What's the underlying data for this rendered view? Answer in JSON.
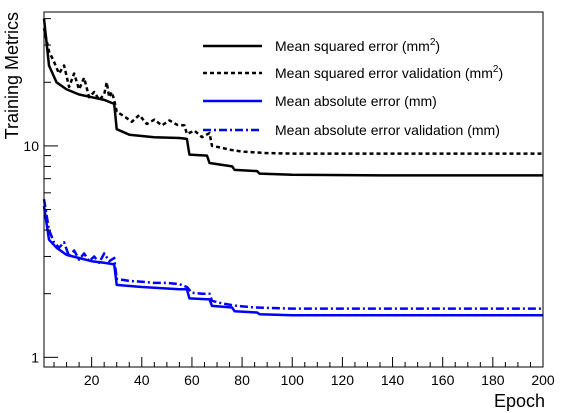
{
  "chart_data": {
    "type": "line",
    "xlabel": "Epoch",
    "ylabel": "Training Metrics",
    "x_scale": "linear",
    "y_scale": "log",
    "xlim": [
      1,
      200
    ],
    "ylim": [
      0.9,
      43
    ],
    "x_ticks": [
      20,
      40,
      60,
      80,
      100,
      120,
      140,
      160,
      180,
      200
    ],
    "x_tick_labels": [
      "20",
      "40",
      "60",
      "80",
      "100",
      "120",
      "140",
      "160",
      "180",
      "200"
    ],
    "y_ticks": [
      1,
      10
    ],
    "y_tick_labels": [
      "1",
      "10"
    ],
    "grid": false,
    "legend_position": "top-right",
    "series": [
      {
        "name": "Mean squared error (mm",
        "name_sup": "2",
        "name_suffix": ")",
        "color": "#000000",
        "style": "solid",
        "points": [
          [
            1,
            40
          ],
          [
            3,
            24
          ],
          [
            6,
            20
          ],
          [
            10,
            18.5
          ],
          [
            15,
            17.5
          ],
          [
            20,
            17
          ],
          [
            25,
            16.5
          ],
          [
            29,
            15.8
          ],
          [
            30,
            12
          ],
          [
            35,
            11.3
          ],
          [
            45,
            11
          ],
          [
            55,
            10.9
          ],
          [
            58,
            10.8
          ],
          [
            59,
            9.1
          ],
          [
            66,
            9.0
          ],
          [
            67,
            8.3
          ],
          [
            76,
            8.0
          ],
          [
            77,
            7.7
          ],
          [
            86,
            7.6
          ],
          [
            87,
            7.4
          ],
          [
            100,
            7.3
          ],
          [
            140,
            7.25
          ],
          [
            200,
            7.25
          ]
        ]
      },
      {
        "name": "Mean squared error validation (mm",
        "name_sup": "2",
        "name_suffix": ")",
        "color": "#000000",
        "style": "dotted",
        "points": [
          [
            1,
            36
          ],
          [
            3,
            28
          ],
          [
            5,
            25
          ],
          [
            7,
            22
          ],
          [
            9,
            24
          ],
          [
            11,
            19
          ],
          [
            13,
            22
          ],
          [
            15,
            18.5
          ],
          [
            17,
            21
          ],
          [
            19,
            17
          ],
          [
            21,
            18
          ],
          [
            23,
            16.5
          ],
          [
            25,
            17.5
          ],
          [
            26,
            20
          ],
          [
            27,
            17
          ],
          [
            28,
            18
          ],
          [
            29,
            16.5
          ],
          [
            30,
            14.5
          ],
          [
            33,
            13.8
          ],
          [
            36,
            13
          ],
          [
            39,
            14
          ],
          [
            42,
            12.7
          ],
          [
            45,
            13.3
          ],
          [
            48,
            12.5
          ],
          [
            51,
            13.2
          ],
          [
            54,
            12.6
          ],
          [
            57,
            12.5
          ],
          [
            58,
            11.4
          ],
          [
            61,
            11.8
          ],
          [
            64,
            11
          ],
          [
            67,
            11.5
          ],
          [
            68,
            10
          ],
          [
            72,
            9.8
          ],
          [
            75,
            9.6
          ],
          [
            80,
            9.4
          ],
          [
            90,
            9.25
          ],
          [
            100,
            9.2
          ],
          [
            200,
            9.2
          ]
        ]
      },
      {
        "name": "Mean absolute error (mm)",
        "color": "#0000ff",
        "style": "solid",
        "points": [
          [
            1,
            5.2
          ],
          [
            3,
            3.6
          ],
          [
            6,
            3.3
          ],
          [
            10,
            3.05
          ],
          [
            15,
            2.95
          ],
          [
            20,
            2.85
          ],
          [
            25,
            2.8
          ],
          [
            29,
            2.75
          ],
          [
            30,
            2.2
          ],
          [
            40,
            2.15
          ],
          [
            55,
            2.1
          ],
          [
            58,
            2.1
          ],
          [
            59,
            1.9
          ],
          [
            67,
            1.88
          ],
          [
            68,
            1.75
          ],
          [
            76,
            1.72
          ],
          [
            77,
            1.65
          ],
          [
            86,
            1.63
          ],
          [
            87,
            1.6
          ],
          [
            100,
            1.58
          ],
          [
            200,
            1.58
          ]
        ]
      },
      {
        "name": "Mean absolute error validation (mm)",
        "color": "#0000ff",
        "style": "dashdot",
        "points": [
          [
            1,
            5.6
          ],
          [
            3,
            4
          ],
          [
            5,
            3.5
          ],
          [
            7,
            3.3
          ],
          [
            9,
            3.5
          ],
          [
            11,
            3.0
          ],
          [
            13,
            3.2
          ],
          [
            15,
            2.9
          ],
          [
            17,
            3.1
          ],
          [
            19,
            2.85
          ],
          [
            21,
            3.0
          ],
          [
            23,
            2.8
          ],
          [
            25,
            3.1
          ],
          [
            27,
            2.85
          ],
          [
            29,
            2.95
          ],
          [
            30,
            2.35
          ],
          [
            35,
            2.3
          ],
          [
            40,
            2.28
          ],
          [
            45,
            2.25
          ],
          [
            50,
            2.25
          ],
          [
            55,
            2.22
          ],
          [
            58,
            2.15
          ],
          [
            60,
            2.02
          ],
          [
            64,
            2.0
          ],
          [
            67,
            2.0
          ],
          [
            68,
            1.85
          ],
          [
            72,
            1.8
          ],
          [
            78,
            1.75
          ],
          [
            85,
            1.72
          ],
          [
            100,
            1.7
          ],
          [
            200,
            1.7
          ]
        ]
      }
    ]
  }
}
